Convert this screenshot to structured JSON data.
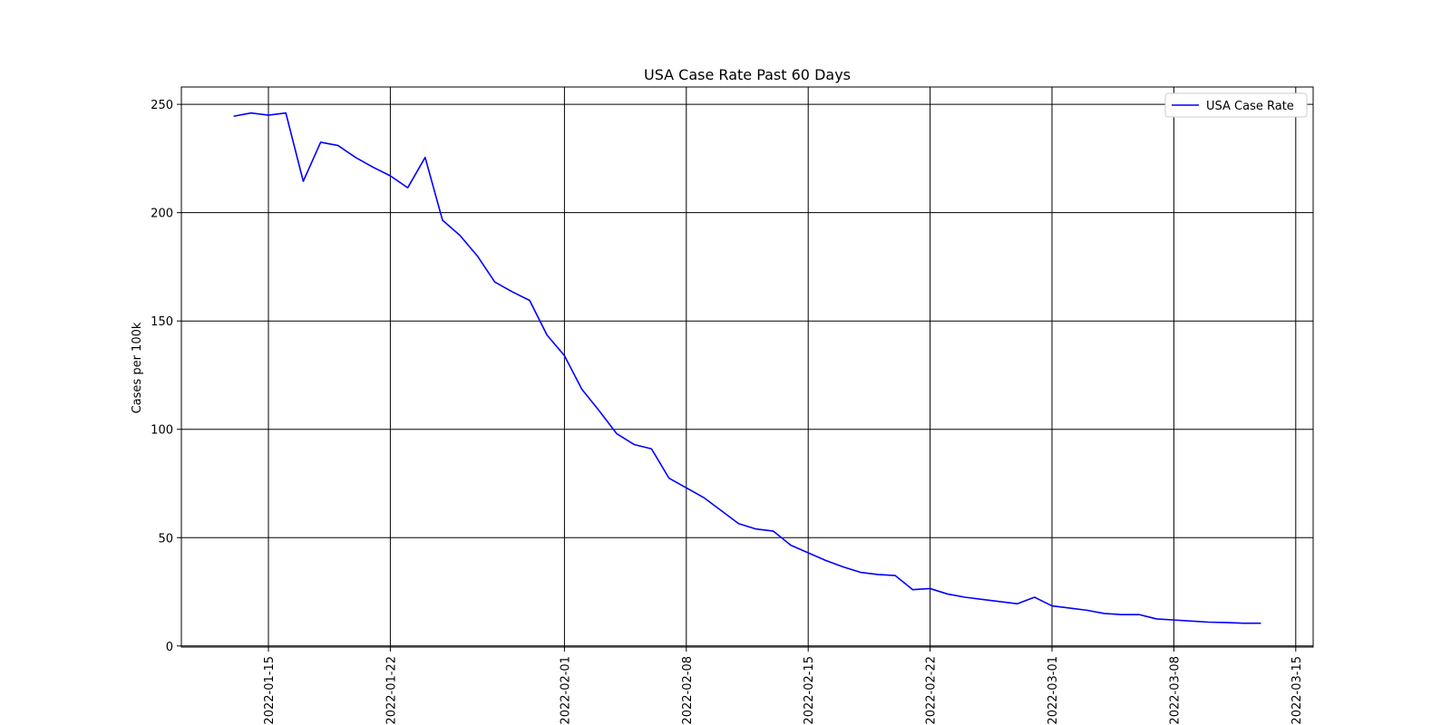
{
  "chart_data": {
    "type": "line",
    "title": "USA Case Rate Past 60 Days",
    "xlabel": "",
    "ylabel": "Cases per 100k",
    "xlim": [
      "2022-01-10",
      "2022-03-16"
    ],
    "ylim": [
      -0.5,
      258
    ],
    "x_ticks": [
      "2022-01-15",
      "2022-01-22",
      "2022-02-01",
      "2022-02-08",
      "2022-02-15",
      "2022-02-22",
      "2022-03-01",
      "2022-03-08",
      "2022-03-15"
    ],
    "y_ticks": [
      0,
      50,
      100,
      150,
      200,
      250
    ],
    "grid": true,
    "legend_position": "top-right",
    "colors": {
      "series": "#0000ff",
      "grid": "#000000"
    },
    "series": [
      {
        "name": "USA Case Rate",
        "x": [
          "2022-01-13",
          "2022-01-14",
          "2022-01-15",
          "2022-01-16",
          "2022-01-17",
          "2022-01-18",
          "2022-01-19",
          "2022-01-20",
          "2022-01-21",
          "2022-01-22",
          "2022-01-23",
          "2022-01-24",
          "2022-01-25",
          "2022-01-26",
          "2022-01-27",
          "2022-01-28",
          "2022-01-29",
          "2022-01-30",
          "2022-01-31",
          "2022-02-01",
          "2022-02-02",
          "2022-02-03",
          "2022-02-04",
          "2022-02-05",
          "2022-02-06",
          "2022-02-07",
          "2022-02-08",
          "2022-02-09",
          "2022-02-10",
          "2022-02-11",
          "2022-02-12",
          "2022-02-13",
          "2022-02-14",
          "2022-02-15",
          "2022-02-16",
          "2022-02-17",
          "2022-02-18",
          "2022-02-19",
          "2022-02-20",
          "2022-02-21",
          "2022-02-22",
          "2022-02-23",
          "2022-02-24",
          "2022-02-25",
          "2022-02-26",
          "2022-02-27",
          "2022-02-28",
          "2022-03-01",
          "2022-03-02",
          "2022-03-03",
          "2022-03-04",
          "2022-03-05",
          "2022-03-06",
          "2022-03-07",
          "2022-03-08",
          "2022-03-09",
          "2022-03-10",
          "2022-03-11",
          "2022-03-12",
          "2022-03-13"
        ],
        "values": [
          244.5,
          246,
          245,
          246,
          214.5,
          232.5,
          231,
          225.5,
          221,
          217,
          211.5,
          225.5,
          196.5,
          189.5,
          180,
          168,
          163.5,
          159.5,
          143.5,
          134,
          118.5,
          108.5,
          98,
          93,
          91,
          77.5,
          73,
          68.5,
          62.5,
          56.5,
          54,
          53,
          46.5,
          43,
          39.5,
          36.5,
          34,
          33,
          32.5,
          26,
          26.5,
          24,
          22.5,
          21.5,
          20.5,
          19.5,
          22.5,
          18.5,
          17.5,
          16.5,
          15,
          14.5,
          14.5,
          12.5,
          12,
          11.5,
          11,
          10.8,
          10.5,
          10.5
        ]
      }
    ]
  }
}
